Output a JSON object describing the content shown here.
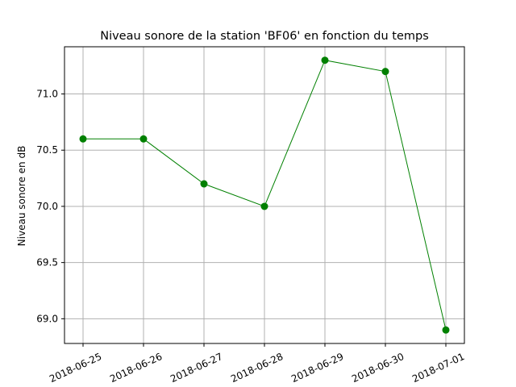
{
  "chart_data": {
    "type": "line",
    "title": "Niveau sonore de la station 'BF06' en fonction du temps",
    "xlabel": "",
    "ylabel": "Niveau sonore en dB",
    "x": [
      "2018-06-25",
      "2018-06-26",
      "2018-06-27",
      "2018-06-28",
      "2018-06-29",
      "2018-06-30",
      "2018-07-01"
    ],
    "series": [
      {
        "values": [
          70.6,
          70.6,
          70.2,
          70.0,
          71.3,
          71.2,
          68.9
        ],
        "color": "#008000"
      }
    ],
    "ylim": [
      68.78,
      71.42
    ],
    "yticks": [
      "69.0",
      "69.5",
      "70.0",
      "70.5",
      "71.0"
    ],
    "grid": true,
    "marker": "circle"
  }
}
